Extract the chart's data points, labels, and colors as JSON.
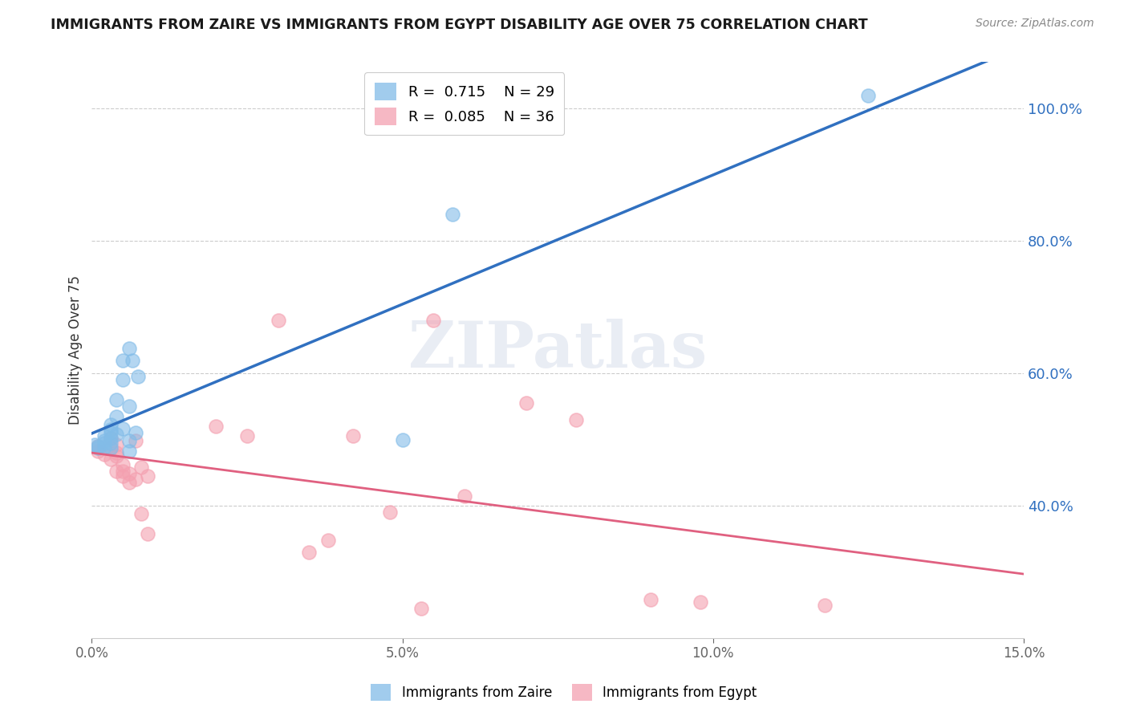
{
  "title": "IMMIGRANTS FROM ZAIRE VS IMMIGRANTS FROM EGYPT DISABILITY AGE OVER 75 CORRELATION CHART",
  "source": "Source: ZipAtlas.com",
  "ylabel": "Disability Age Over 75",
  "xlim": [
    0.0,
    0.15
  ],
  "ylim": [
    0.2,
    1.07
  ],
  "xticks": [
    0.0,
    0.05,
    0.1,
    0.15
  ],
  "xticklabels": [
    "0.0%",
    "5.0%",
    "10.0%",
    "15.0%"
  ],
  "yticks_right": [
    0.4,
    0.6,
    0.8,
    1.0
  ],
  "yticklabels_right": [
    "40.0%",
    "60.0%",
    "80.0%",
    "100.0%"
  ],
  "legend_zaire_r": "0.715",
  "legend_zaire_n": "29",
  "legend_egypt_r": "0.085",
  "legend_egypt_n": "36",
  "zaire_color": "#82bce8",
  "egypt_color": "#f4a0b0",
  "zaire_line_color": "#3070c0",
  "egypt_line_color": "#e06080",
  "watermark": "ZIPatlas",
  "zaire_x": [
    0.0005,
    0.001,
    0.001,
    0.002,
    0.002,
    0.002,
    0.002,
    0.003,
    0.003,
    0.003,
    0.003,
    0.003,
    0.003,
    0.004,
    0.004,
    0.004,
    0.005,
    0.005,
    0.005,
    0.006,
    0.006,
    0.006,
    0.006,
    0.0065,
    0.007,
    0.0075,
    0.05,
    0.058,
    0.125
  ],
  "zaire_y": [
    0.492,
    0.49,
    0.487,
    0.505,
    0.495,
    0.489,
    0.498,
    0.51,
    0.495,
    0.502,
    0.488,
    0.515,
    0.522,
    0.508,
    0.535,
    0.56,
    0.516,
    0.59,
    0.62,
    0.498,
    0.482,
    0.55,
    0.638,
    0.62,
    0.51,
    0.595,
    0.5,
    0.84,
    1.02
  ],
  "egypt_x": [
    0.001,
    0.001,
    0.002,
    0.003,
    0.003,
    0.003,
    0.004,
    0.004,
    0.004,
    0.004,
    0.005,
    0.005,
    0.005,
    0.006,
    0.006,
    0.007,
    0.007,
    0.008,
    0.008,
    0.009,
    0.009,
    0.02,
    0.025,
    0.03,
    0.035,
    0.038,
    0.042,
    0.048,
    0.053,
    0.055,
    0.06,
    0.07,
    0.078,
    0.09,
    0.098,
    0.118
  ],
  "egypt_y": [
    0.49,
    0.482,
    0.478,
    0.502,
    0.488,
    0.47,
    0.492,
    0.452,
    0.48,
    0.475,
    0.462,
    0.445,
    0.452,
    0.448,
    0.435,
    0.44,
    0.498,
    0.458,
    0.388,
    0.358,
    0.445,
    0.52,
    0.505,
    0.68,
    0.33,
    0.348,
    0.505,
    0.39,
    0.245,
    0.68,
    0.415,
    0.555,
    0.53,
    0.258,
    0.255,
    0.25
  ]
}
